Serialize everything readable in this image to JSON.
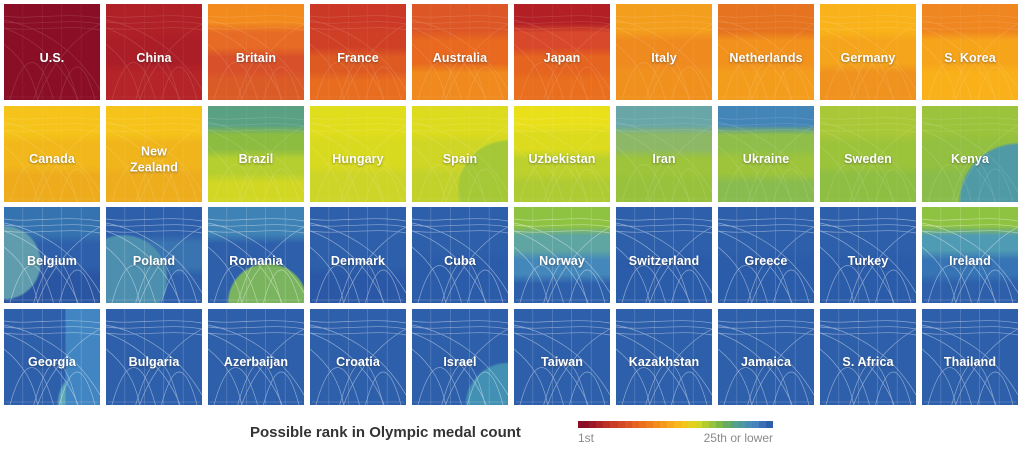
{
  "legend": {
    "title": "Possible rank in Olympic medal count",
    "min_label": "1st",
    "max_label": "25th or lower",
    "bar_colors": [
      "#8a0f26",
      "#9c1a27",
      "#ad2426",
      "#bd3025",
      "#c93c25",
      "#d44824",
      "#dd5522",
      "#e56220",
      "#ea6f1f",
      "#ef7d1e",
      "#f38b1d",
      "#f5991c",
      "#f7a81b",
      "#f8b71a",
      "#f3c51c",
      "#e5cf21",
      "#cfd626",
      "#b4cd2e",
      "#98c33a",
      "#7cb747",
      "#65ab62",
      "#57a283",
      "#4e99a0",
      "#488db5",
      "#4583bb",
      "#3a6fb8",
      "#2d5fab"
    ]
  },
  "chart_data": {
    "type": "heatmap",
    "title": "Possible rank in Olympic medal count",
    "layout": {
      "rows": 4,
      "cols": 10,
      "legend_position": "bottom"
    },
    "scale": {
      "min": "1st",
      "max": "25th or lower",
      "min_color": "#8a0f26",
      "max_color": "#2d5fab"
    },
    "tiles": [
      {
        "name": "U.S.",
        "label": "U.S.",
        "rank_hint": "1st",
        "overlay": "soft",
        "colors": [
          "#8a0e26"
        ]
      },
      {
        "name": "China",
        "label": "China",
        "rank_hint": "2nd-3rd",
        "overlay": "soft",
        "colors": [
          "#b02027",
          "#ac1e27",
          "#b42428"
        ]
      },
      {
        "name": "Britain",
        "label": "Britain",
        "rank_hint": "3rd-6th",
        "overlay": "soft",
        "colors": [
          "#f28a1e",
          "#e76b24",
          "#d8502a",
          "#db5b26"
        ]
      },
      {
        "name": "France",
        "label": "France",
        "rank_hint": "4th-7th",
        "overlay": "soft",
        "colors": [
          "#cb3926",
          "#cf3f26",
          "#dd5a23",
          "#e86d1f"
        ]
      },
      {
        "name": "Australia",
        "label": "Australia",
        "rank_hint": "4th-8th",
        "overlay": "soft",
        "colors": [
          "#dd5726",
          "#e8691f",
          "#f08a1e"
        ]
      },
      {
        "name": "Japan",
        "label": "Japan",
        "rank_hint": "3rd-8th",
        "overlay": "soft",
        "colors": [
          "#b22025",
          "#d8482a",
          "#e5641f",
          "#e96e1e"
        ]
      },
      {
        "name": "Italy",
        "label": "Italy",
        "rank_hint": "7th-10th",
        "overlay": "soft",
        "colors": [
          "#f49e1d",
          "#ef8a1f",
          "#f0911e"
        ]
      },
      {
        "name": "Netherlands",
        "label": "Netherlands",
        "rank_hint": "6th-10th",
        "overlay": "soft",
        "colors": [
          "#e5731f",
          "#f2921d",
          "#f49d1d"
        ]
      },
      {
        "name": "Germany",
        "label": "Germany",
        "rank_hint": "8th-12th",
        "overlay": "soft",
        "colors": [
          "#f9b219",
          "#f5a51c",
          "#ef921e"
        ]
      },
      {
        "name": "S. Korea",
        "label": "S. Korea",
        "rank_hint": "8th-12th",
        "overlay": "soft",
        "colors": [
          "#ef861f",
          "#f6a51b",
          "#f9b019"
        ]
      },
      {
        "name": "Canada",
        "label": "Canada",
        "rank_hint": "10th-14th",
        "overlay": "soft",
        "colors": [
          "#f5c319",
          "#f2b81b",
          "#eeac1d"
        ]
      },
      {
        "name": "New Zealand",
        "label": "New\nZealand",
        "rank_hint": "10th-14th",
        "overlay": "soft",
        "colors": [
          "#f5c319",
          "#f1b51c",
          "#eead1d"
        ]
      },
      {
        "name": "Brazil",
        "label": "Brazil",
        "rank_hint": "12th-18th",
        "overlay": "soft",
        "colors": [
          "#5aa184",
          "#8cbd41",
          "#b5cf30",
          "#d2d724"
        ]
      },
      {
        "name": "Hungary",
        "label": "Hungary",
        "rank_hint": "13th-16th",
        "overlay": "soft",
        "colors": [
          "#dfdd1c",
          "#d8da20",
          "#cdd528"
        ]
      },
      {
        "name": "Spain",
        "label": "Spain",
        "rank_hint": "13th-17th",
        "overlay": "soft",
        "colors": [
          "#dcdb1e",
          "#d0d626",
          "#c2d22b"
        ],
        "accents": [
          {
            "shape": "corner",
            "pos": "100% 88%",
            "color": "#a5c836",
            "size": 38
          }
        ]
      },
      {
        "name": "Uzbekistan",
        "label": "Uzbekistan",
        "rank_hint": "12th-18th",
        "overlay": "soft",
        "colors": [
          "#e9e01a",
          "#dcdb1e",
          "#bdd12d",
          "#aecb33"
        ]
      },
      {
        "name": "Iran",
        "label": "Iran",
        "rank_hint": "15th-20th",
        "overlay": "soft",
        "colors": [
          "#68a6a7",
          "#8db866",
          "#9dc43a",
          "#98c23d"
        ]
      },
      {
        "name": "Ukraine",
        "label": "Ukraine",
        "rank_hint": "15th-22nd",
        "overlay": "soft",
        "colors": [
          "#4485b8",
          "#8fbf4a",
          "#9dc43b",
          "#88bc4e"
        ]
      },
      {
        "name": "Sweden",
        "label": "Sweden",
        "rank_hint": "16th-20th",
        "overlay": "soft",
        "colors": [
          "#a9c837",
          "#9cc43b",
          "#8ebf42"
        ]
      },
      {
        "name": "Kenya",
        "label": "Kenya",
        "rank_hint": "16th-21st",
        "overlay": "soft",
        "colors": [
          "#9bc33c",
          "#93c040",
          "#8abc49"
        ],
        "accents": [
          {
            "shape": "corner",
            "pos": "100% 100%",
            "color": "#4f9aa5",
            "size": 42
          }
        ]
      },
      {
        "name": "Belgium",
        "label": "Belgium",
        "rank_hint": "20th-25th",
        "overlay": "lines",
        "colors": [
          "#3572b0",
          "#2d5fab",
          "#2a55a2"
        ],
        "accents": [
          {
            "shape": "corner",
            "pos": "0% 58%",
            "color": "#5f9dae",
            "size": 32
          }
        ]
      },
      {
        "name": "Poland",
        "label": "Poland",
        "rank_hint": "20th-25th",
        "overlay": "lines",
        "colors": [
          "#2d5fab",
          "#3a74b0",
          "#2d5fab"
        ],
        "accents": [
          {
            "shape": "corner",
            "pos": "18% 75%",
            "color": "#4d8fae",
            "size": 40
          }
        ]
      },
      {
        "name": "Romania",
        "label": "Romania",
        "rank_hint": "20th-25th",
        "overlay": "lines",
        "colors": [
          "#3f82b5",
          "#2d5fab",
          "#2d5fab"
        ],
        "accents": [
          {
            "shape": "corner",
            "pos": "62% 100%",
            "color": "#7ab45f",
            "size": 34
          }
        ]
      },
      {
        "name": "Denmark",
        "label": "Denmark",
        "rank_hint": "20th-25th",
        "overlay": "lines",
        "colors": [
          "#2d5fab",
          "#2d5fab",
          "#2a58a6"
        ]
      },
      {
        "name": "Cuba",
        "label": "Cuba",
        "rank_hint": "20th-25th",
        "overlay": "lines",
        "colors": [
          "#2d5fab",
          "#2b5ca9"
        ]
      },
      {
        "name": "Norway",
        "label": "Norway",
        "rank_hint": "20th-25th",
        "overlay": "lines",
        "colors": [
          "#8ec241",
          "#5fa5a2",
          "#4488bb",
          "#2d5fab"
        ]
      },
      {
        "name": "Switzerland",
        "label": "Switzerland",
        "rank_hint": "25th or lower",
        "overlay": "lines",
        "colors": [
          "#2d5fab",
          "#2b5ca9"
        ]
      },
      {
        "name": "Greece",
        "label": "Greece",
        "rank_hint": "25th or lower",
        "overlay": "lines",
        "colors": [
          "#2d5fab",
          "#2b5ca9"
        ]
      },
      {
        "name": "Turkey",
        "label": "Turkey",
        "rank_hint": "25th or lower",
        "overlay": "lines",
        "colors": [
          "#2d5fab",
          "#2b5ca9"
        ]
      },
      {
        "name": "Ireland",
        "label": "Ireland",
        "rank_hint": "20th-25th",
        "overlay": "lines",
        "colors": [
          "#8ec241",
          "#4f9bb3",
          "#3674b5",
          "#2d5fab"
        ]
      },
      {
        "name": "Georgia",
        "label": "Georgia",
        "rank_hint": "25th or lower",
        "overlay": "lines",
        "colors": [
          "#2d5fab",
          "#2d5fab"
        ],
        "accents": [
          {
            "shape": "side",
            "color": "#4186c2",
            "size": 36
          },
          {
            "shape": "corner",
            "pos": "100% 100%",
            "color": "#5fa8b8",
            "size": 30
          }
        ]
      },
      {
        "name": "Bulgaria",
        "label": "Bulgaria",
        "rank_hint": "25th or lower",
        "overlay": "lines",
        "colors": [
          "#2d5fab"
        ]
      },
      {
        "name": "Azerbaijan",
        "label": "Azerbaijan",
        "rank_hint": "25th or lower",
        "overlay": "lines",
        "colors": [
          "#2d5fab"
        ]
      },
      {
        "name": "Croatia",
        "label": "Croatia",
        "rank_hint": "25th or lower",
        "overlay": "lines",
        "colors": [
          "#2d5fab"
        ]
      },
      {
        "name": "Israel",
        "label": "Israel",
        "rank_hint": "25th or lower",
        "overlay": "lines",
        "colors": [
          "#2d5fab",
          "#2d5fab"
        ],
        "accents": [
          {
            "shape": "corner",
            "pos": "100% 100%",
            "color": "#4291b4",
            "size": 30
          }
        ]
      },
      {
        "name": "Taiwan",
        "label": "Taiwan",
        "rank_hint": "25th or lower",
        "overlay": "lines",
        "colors": [
          "#2d5fab"
        ]
      },
      {
        "name": "Kazakhstan",
        "label": "Kazakhstan",
        "rank_hint": "25th or lower",
        "overlay": "lines",
        "colors": [
          "#2d5fab"
        ]
      },
      {
        "name": "Jamaica",
        "label": "Jamaica",
        "rank_hint": "25th or lower",
        "overlay": "lines",
        "colors": [
          "#2d5fab"
        ]
      },
      {
        "name": "S. Africa",
        "label": "S. Africa",
        "rank_hint": "25th or lower",
        "overlay": "lines",
        "colors": [
          "#2d5fab"
        ]
      },
      {
        "name": "Thailand",
        "label": "Thailand",
        "rank_hint": "25th or lower",
        "overlay": "lines",
        "colors": [
          "#2d5fab"
        ]
      }
    ]
  }
}
